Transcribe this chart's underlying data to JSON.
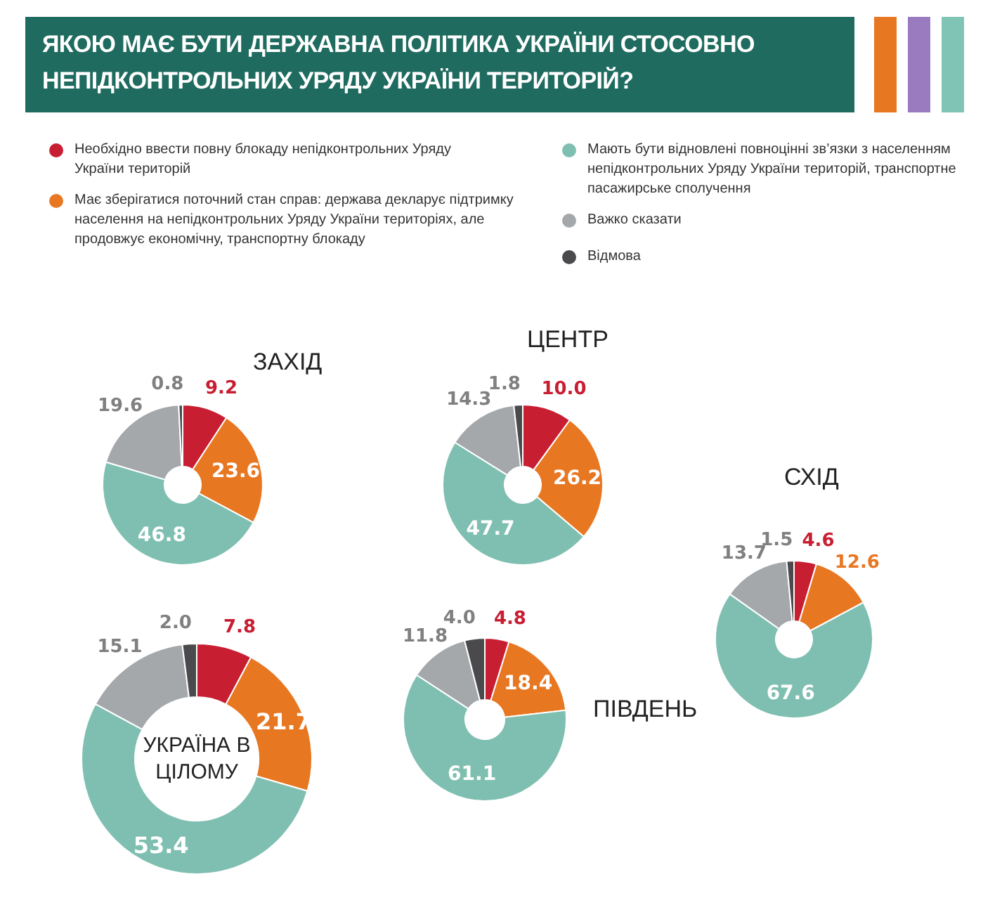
{
  "chart_data": [
    {
      "type": "other",
      "title": "ЯКОЮ МАЄ БУТИ ДЕРЖАВНА ПОЛІТИКА УКРАЇНИ СТОСОВНО НЕПІДКОНТРОЛЬНИХ УРЯДУ УКРАЇНИ ТЕРИТОРІЙ?"
    },
    {
      "type": "donut",
      "title": "ЗАХІД",
      "legend": "top",
      "categories": [
        "Необхідно ввести повну блокаду непідконтрольних Уряду України територій",
        "Має зберігатися поточний стан справ: держава декларує підтримку населення на непідконтрольних Уряду України територіях, але продовжує економічну, транспортну блокаду",
        "Мають бути відновлені повноцінні зв’язки з населенням непідконтрольних Уряду України територій, транспортне пасажирське сполучення",
        "Важко сказати",
        "Відмова"
      ],
      "values": [
        9.2,
        23.6,
        46.8,
        19.6,
        0.8
      ],
      "value_labels": [
        "9.2",
        "23.6",
        "46.8",
        "19.6",
        "0.8"
      ],
      "colors": [
        "#c81e32",
        "#e87722",
        "#7fbfb1",
        "#a5a8ab",
        "#4a4a4d"
      ]
    },
    {
      "type": "donut",
      "title": "ЦЕНТР",
      "categories": [
        null,
        null,
        null,
        null,
        null
      ],
      "values": [
        10.0,
        26.2,
        47.7,
        14.3,
        1.8
      ],
      "value_labels": [
        "10.0",
        "26.2",
        "47.7",
        "14.3",
        "1.8"
      ],
      "colors": [
        "#c81e32",
        "#e87722",
        "#7fbfb1",
        "#a5a8ab",
        "#4a4a4d"
      ]
    },
    {
      "type": "donut",
      "title": "СХІД",
      "categories": [
        null,
        null,
        null,
        null,
        null
      ],
      "values": [
        4.6,
        12.6,
        67.6,
        13.7,
        1.5
      ],
      "value_labels": [
        "4.6",
        "12.6",
        "67.6",
        "13.7",
        "1.5"
      ],
      "colors": [
        "#c81e32",
        "#e87722",
        "#7fbfb1",
        "#a5a8ab",
        "#4a4a4d"
      ]
    },
    {
      "type": "donut",
      "title": "ПІВДЕНЬ",
      "categories": [
        null,
        null,
        null,
        null,
        null
      ],
      "values": [
        4.8,
        18.4,
        61.1,
        11.8,
        4.0
      ],
      "value_labels": [
        "4.8",
        "18.4",
        "61.1",
        "11.8",
        "4.0"
      ],
      "colors": [
        "#c81e32",
        "#e87722",
        "#7fbfb1",
        "#a5a8ab",
        "#4a4a4d"
      ]
    },
    {
      "type": "donut",
      "title": "УКРАЇНА В ЦІЛОМУ",
      "categories": [
        null,
        null,
        null,
        null,
        null
      ],
      "values": [
        7.8,
        21.7,
        53.4,
        15.1,
        2.0
      ],
      "value_labels": [
        "7.8",
        "21.7",
        "53.4",
        "15.1",
        "2.0"
      ],
      "colors": [
        "#c81e32",
        "#e87722",
        "#7fbfb1",
        "#a5a8ab",
        "#4a4a4d"
      ]
    }
  ]
}
